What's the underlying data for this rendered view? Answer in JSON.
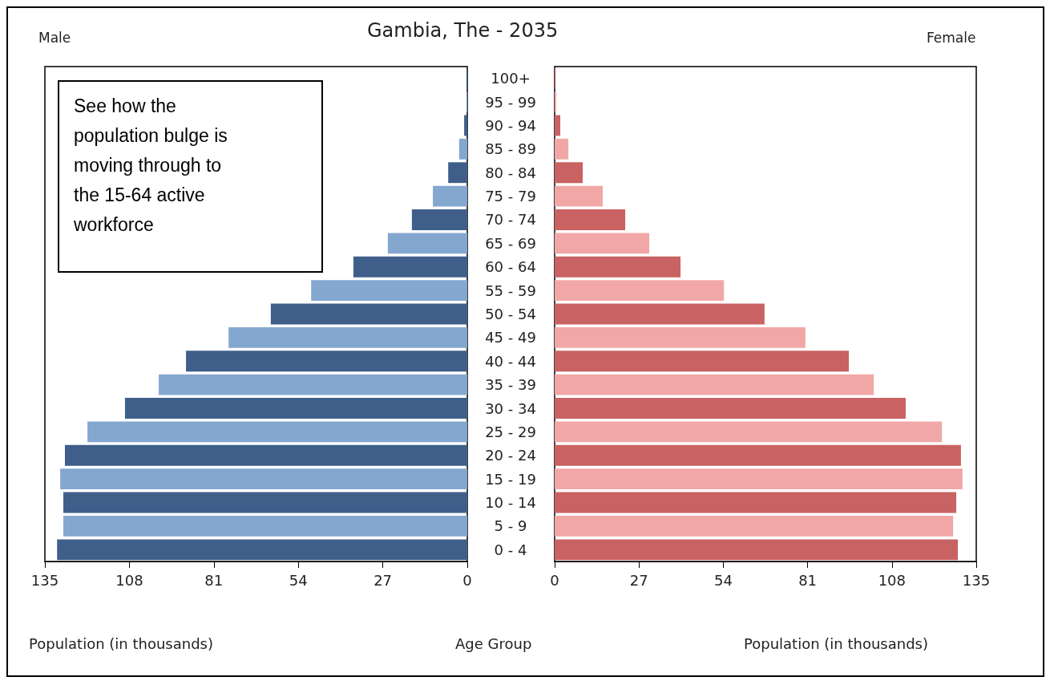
{
  "chart_data": [
    {
      "type": "bar",
      "orientation": "horizontal",
      "title": "Gambia, The - 2035",
      "xlabel": "Population (in thousands)",
      "ylabel": "Age Group",
      "annotations": [
        "See how the population bulge is moving through to the 15-64 active workforce"
      ],
      "categories": [
        "100+",
        "95 - 99",
        "90 - 94",
        "85 - 89",
        "80 - 84",
        "75 - 79",
        "70 - 74",
        "65 - 69",
        "60 - 64",
        "55 - 59",
        "50 - 54",
        "45 - 49",
        "40 - 44",
        "35 - 39",
        "30 - 34",
        "25 - 29",
        "20 - 24",
        "15 - 19",
        "10 - 14",
        "5 - 9",
        "0 - 4"
      ],
      "series": [
        {
          "name": "Male",
          "colors": [
            "#3f5f8a",
            "#84a7cf",
            "#3f5f8a",
            "#84a7cf",
            "#3f5f8a",
            "#84a7cf",
            "#3f5f8a",
            "#84a7cf",
            "#3f5f8a",
            "#84a7cf",
            "#3f5f8a",
            "#84a7cf",
            "#3f5f8a",
            "#84a7cf",
            "#3f5f8a",
            "#84a7cf",
            "#3f5f8a",
            "#84a7cf",
            "#3f5f8a",
            "#84a7cf",
            "#3f5f8a"
          ],
          "values": [
            0.2,
            0.3,
            1,
            2.6,
            6.1,
            11,
            17.7,
            25.4,
            36.4,
            49.9,
            62.8,
            76.3,
            89.9,
            98.6,
            109.4,
            121.4,
            128.6,
            130.1,
            129.1,
            129.1,
            131.1
          ]
        }
      ],
      "xlim": [
        135,
        0
      ],
      "xticks": [
        135,
        108,
        81,
        54,
        27,
        0
      ],
      "grid": false
    },
    {
      "type": "bar",
      "orientation": "horizontal",
      "xlabel": "Population (in thousands)",
      "categories": [
        null,
        null,
        null,
        null,
        null,
        null,
        null,
        null,
        null,
        null,
        null,
        null,
        null,
        null,
        null,
        null,
        null,
        null,
        null,
        null,
        null
      ],
      "series": [
        {
          "name": "Female",
          "colors": [
            "#c96262",
            "#f2a7a7",
            "#c96262",
            "#f2a7a7",
            "#c96262",
            "#f2a7a7",
            "#c96262",
            "#f2a7a7",
            "#c96262",
            "#f2a7a7",
            "#c96262",
            "#f2a7a7",
            "#c96262",
            "#f2a7a7",
            "#c96262",
            "#f2a7a7",
            "#c96262",
            "#f2a7a7",
            "#c96262",
            "#f2a7a7",
            "#c96262"
          ],
          "values": [
            0.3,
            0.5,
            1.8,
            4.4,
            9,
            15.4,
            22.6,
            30.3,
            40.3,
            54.2,
            67.2,
            80.3,
            94.2,
            102.2,
            112.4,
            124,
            130.1,
            130.6,
            128.6,
            127.6,
            129.1
          ]
        }
      ],
      "xlim": [
        0,
        135
      ],
      "xticks": [
        0,
        27,
        54,
        81,
        108,
        135
      ],
      "grid": false
    }
  ]
}
